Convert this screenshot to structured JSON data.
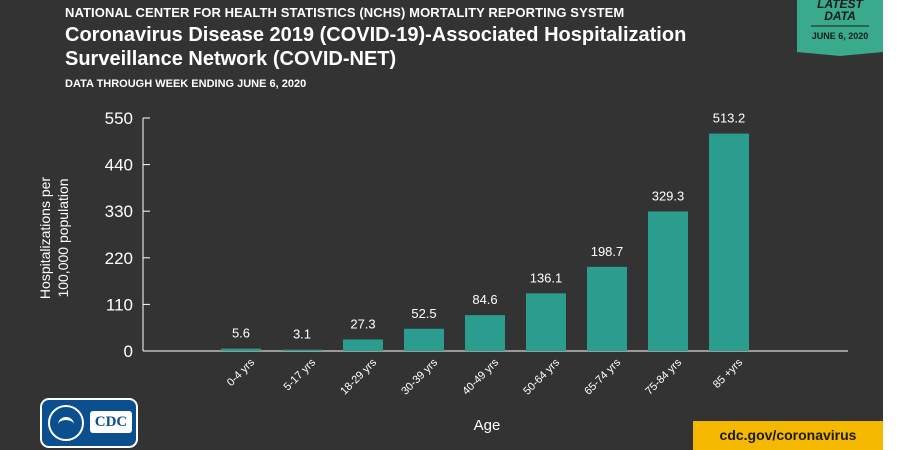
{
  "header": {
    "organization": "NATIONAL CENTER FOR HEALTH STATISTICS (NCHS) MORTALITY REPORTING SYSTEM",
    "title_line1": "Coronavirus Disease 2019 (COVID-19)-Associated Hospitalization",
    "title_line2": "Surveillance Network (COVID-NET)",
    "subtitle": "DATA THROUGH WEEK ENDING JUNE 6, 2020"
  },
  "badge": {
    "line1": "LATEST",
    "line2": "DATA",
    "date": "JUNE 6, 2020"
  },
  "logo": {
    "text": "CDC"
  },
  "footer": {
    "url": "cdc.gov/coronavirus"
  },
  "colors": {
    "background": "#333333",
    "bar": "#2a9d8f",
    "badge": "#3aaa8c",
    "url_box": "#f5b800"
  },
  "chart_data": {
    "type": "bar",
    "categories": [
      "0-4 yrs",
      "5-17 yrs",
      "18-29 yrs",
      "30-39 yrs",
      "40-49 yrs",
      "50-64 yrs",
      "65-74 yrs",
      "75-84 yrs",
      "85 +yrs"
    ],
    "values": [
      5.6,
      3.1,
      27.3,
      52.5,
      84.6,
      136.1,
      198.7,
      329.3,
      513.2
    ],
    "data_labels": [
      "5.6",
      "3.1",
      "27.3",
      "52.5",
      "84.6",
      "136.1",
      "198.7",
      "329.3",
      "513.2"
    ],
    "xlabel": "Age",
    "ylabel_line1": "Hospitalizations per",
    "ylabel_line2": "100,000 population",
    "ylim": [
      0,
      550
    ],
    "yticks": [
      0,
      110,
      220,
      330,
      440,
      550
    ],
    "grid": false
  }
}
